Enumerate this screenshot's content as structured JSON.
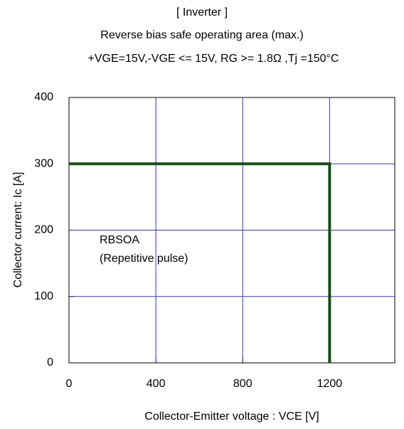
{
  "chart_data": {
    "type": "line",
    "title": "[ Inverter ]",
    "subtitle": "Reverse bias safe operating area (max.)",
    "conditions": "+VGE=15V,-VGE <= 15V, RG >= 1.8Ω ,Tj =150°C",
    "x_label": "Collector-Emitter voltage : VCE [V]",
    "y_label": "Collector current: Ic [A]",
    "annotations": [
      "RBSOA",
      "(Repetitive pulse)"
    ],
    "xlim": [
      0,
      1500
    ],
    "xticks": [
      0,
      400,
      800,
      1200
    ],
    "ylim": [
      0,
      400
    ],
    "yticks": [
      0,
      100,
      200,
      300,
      400
    ],
    "grid": true,
    "series": [
      {
        "color": "#1b4a1b",
        "x": [
          0,
          1200,
          1200
        ],
        "values": [
          300,
          300,
          0
        ]
      }
    ]
  }
}
